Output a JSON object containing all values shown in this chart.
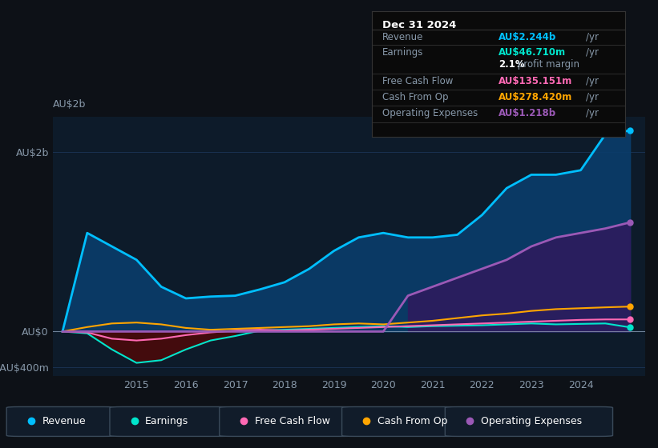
{
  "bg_color": "#0d1117",
  "plot_bg_color": "#0d1b2a",
  "grid_color": "#1e3a5f",
  "ylabel_2b": "AU$2b",
  "ylabel_0": "AU$0",
  "ylabel_neg400": "-AU$400m",
  "years": [
    2013.5,
    2014,
    2014.5,
    2015,
    2015.5,
    2016,
    2016.5,
    2017,
    2017.5,
    2018,
    2018.5,
    2019,
    2019.5,
    2020,
    2020.5,
    2021,
    2021.5,
    2022,
    2022.5,
    2023,
    2023.5,
    2024,
    2024.5,
    2025.0
  ],
  "revenue": [
    0,
    1100,
    950,
    800,
    500,
    370,
    390,
    400,
    470,
    550,
    700,
    900,
    1050,
    1100,
    1050,
    1050,
    1080,
    1300,
    1600,
    1750,
    1750,
    1800,
    2200,
    2244
  ],
  "earnings": [
    0,
    -20,
    -200,
    -350,
    -320,
    -200,
    -100,
    -50,
    10,
    20,
    30,
    40,
    50,
    60,
    50,
    60,
    65,
    70,
    80,
    90,
    80,
    85,
    90,
    46.71
  ],
  "free_cash_flow": [
    0,
    -10,
    -80,
    -100,
    -80,
    -40,
    -10,
    10,
    20,
    10,
    20,
    30,
    40,
    50,
    60,
    70,
    80,
    90,
    100,
    110,
    120,
    130,
    135,
    135.151
  ],
  "cash_from_op": [
    0,
    50,
    90,
    100,
    80,
    40,
    20,
    30,
    40,
    50,
    60,
    80,
    90,
    80,
    100,
    120,
    150,
    180,
    200,
    230,
    250,
    260,
    270,
    278.42
  ],
  "operating_expenses": [
    0,
    0,
    0,
    0,
    0,
    0,
    0,
    0,
    0,
    0,
    0,
    0,
    0,
    0,
    400,
    500,
    600,
    700,
    800,
    950,
    1050,
    1100,
    1150,
    1218
  ],
  "revenue_color": "#00bfff",
  "earnings_color": "#00e5cc",
  "free_cash_flow_color": "#ff69b4",
  "cash_from_op_color": "#ffa500",
  "operating_expenses_color": "#9b59b6",
  "revenue_fill_color": "#0a3d6b",
  "op_exp_fill_color": "#2d1b5e",
  "neg_fill_color": "#4a0a0a",
  "info_box": {
    "date": "Dec 31 2024",
    "revenue_label": "Revenue",
    "revenue_value": "AU$2.244b",
    "revenue_unit": "/yr",
    "revenue_color": "#00bfff",
    "earnings_label": "Earnings",
    "earnings_value": "AU$46.710m",
    "earnings_unit": "/yr",
    "earnings_color": "#00e5cc",
    "margin_text": "2.1%",
    "margin_label": " profit margin",
    "fcf_label": "Free Cash Flow",
    "fcf_value": "AU$135.151m",
    "fcf_unit": "/yr",
    "fcf_color": "#ff69b4",
    "cfop_label": "Cash From Op",
    "cfop_value": "AU$278.420m",
    "cfop_unit": "/yr",
    "cfop_color": "#ffa500",
    "opex_label": "Operating Expenses",
    "opex_value": "AU$1.218b",
    "opex_unit": "/yr",
    "opex_color": "#9b59b6"
  },
  "legend_items": [
    {
      "label": "Revenue",
      "color": "#00bfff"
    },
    {
      "label": "Earnings",
      "color": "#00e5cc"
    },
    {
      "label": "Free Cash Flow",
      "color": "#ff69b4"
    },
    {
      "label": "Cash From Op",
      "color": "#ffa500"
    },
    {
      "label": "Operating Expenses",
      "color": "#9b59b6"
    }
  ],
  "xlim": [
    2013.3,
    2025.3
  ],
  "ylim": [
    -500,
    2400
  ],
  "yticks": [
    -400,
    0,
    2000
  ],
  "ytick_labels": [
    "-AU$400m",
    "AU$0",
    "AU$2b"
  ],
  "xticks": [
    2015,
    2016,
    2017,
    2018,
    2019,
    2020,
    2021,
    2022,
    2023,
    2024
  ]
}
